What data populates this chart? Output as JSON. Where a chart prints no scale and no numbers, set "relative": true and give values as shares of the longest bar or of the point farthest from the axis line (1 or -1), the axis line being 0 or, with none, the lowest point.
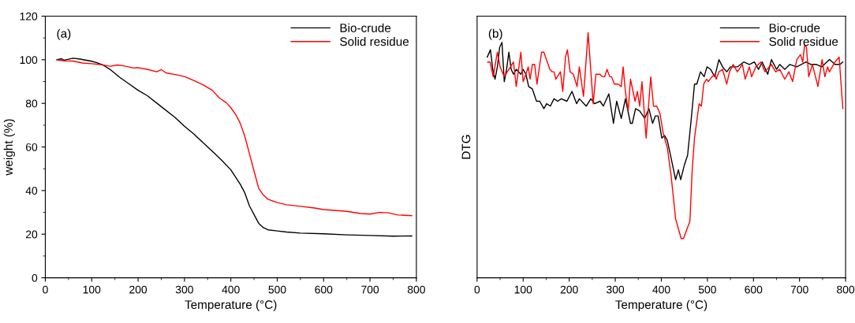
{
  "chart_data": [
    {
      "type": "line",
      "xlabel": "Temperature (°C)",
      "ylabel": "weight (%)",
      "annotations": [
        "(a)"
      ],
      "legend": "top right",
      "grid": false,
      "xlim": [
        0,
        800
      ],
      "xticks": [
        0,
        100,
        200,
        300,
        400,
        500,
        600,
        700,
        800
      ],
      "ylim": [
        0,
        120
      ],
      "yticks": [
        0,
        20,
        40,
        60,
        80,
        100,
        120
      ],
      "series": [
        {
          "name": "Bio-crude",
          "color": "#000000",
          "x": [
            25,
            35,
            40,
            60,
            75,
            100,
            110,
            125,
            140,
            160,
            180,
            200,
            220,
            250,
            280,
            300,
            320,
            340,
            360,
            380,
            400,
            420,
            430,
            440,
            450,
            460,
            470,
            480,
            500,
            520,
            550,
            600,
            650,
            700,
            750,
            790
          ],
          "values": [
            100,
            100.5,
            99.8,
            100.7,
            100.3,
            99.3,
            98.7,
            97.5,
            95.5,
            92,
            89,
            86,
            83.5,
            78.5,
            73.5,
            69.5,
            66,
            62,
            58,
            54,
            49.5,
            43,
            39,
            33,
            29,
            25,
            23,
            22,
            21.5,
            21,
            20.5,
            20.2,
            19.7,
            19.4,
            19.1,
            19.2
          ]
        },
        {
          "name": "Solid residue",
          "color": "#ff0000",
          "x": [
            25,
            40,
            60,
            80,
            100,
            120,
            140,
            155,
            170,
            190,
            200,
            220,
            240,
            250,
            260,
            280,
            300,
            320,
            340,
            360,
            375,
            390,
            400,
            410,
            420,
            430,
            440,
            450,
            460,
            470,
            480,
            500,
            520,
            550,
            580,
            600,
            650,
            680,
            700,
            720,
            740,
            760,
            790
          ],
          "values": [
            100,
            99.5,
            99.4,
            98.5,
            98.2,
            97.8,
            97,
            97.6,
            97.2,
            96.2,
            96.4,
            95.6,
            94.5,
            95.5,
            94,
            93.2,
            92.3,
            90.5,
            88.5,
            86,
            82.5,
            80.3,
            78,
            75,
            71,
            65,
            57,
            49,
            41,
            38,
            36,
            34.5,
            33.5,
            32.8,
            32,
            31.3,
            30.5,
            29.5,
            29.2,
            30,
            29.8,
            28.8,
            28.5
          ]
        }
      ]
    },
    {
      "type": "line",
      "xlabel": "Temperature (°C)",
      "ylabel": "DTG",
      "annotations": [
        "(b)"
      ],
      "legend": "top right",
      "grid": false,
      "relative": true,
      "tick_labels": "x",
      "xlim": [
        0,
        800
      ],
      "xticks": [
        0,
        100,
        200,
        300,
        400,
        500,
        600,
        700,
        800
      ],
      "series": [
        {
          "name": "Bio-crude",
          "color": "#000000",
          "x": [
            22,
            29,
            34,
            39,
            44,
            49,
            54,
            59,
            64,
            69,
            74,
            79,
            85,
            95,
            100,
            106,
            112,
            120,
            129,
            136,
            145,
            151,
            159,
            167,
            175,
            183,
            195,
            206,
            216,
            222,
            237,
            247,
            255,
            267,
            274,
            286,
            296,
            303,
            313,
            322,
            333,
            337,
            344,
            353,
            364,
            373,
            381,
            387,
            393,
            401,
            407,
            413,
            421,
            431,
            437,
            442,
            450,
            457,
            464,
            472,
            477,
            485,
            493,
            499,
            507,
            516,
            525,
            533,
            542,
            550,
            565,
            579,
            591,
            602,
            611,
            619,
            631,
            639,
            650,
            657,
            668,
            679,
            694,
            714,
            725,
            737,
            748,
            765,
            777,
            788,
            794
          ],
          "values": [
            0.9,
            0.93,
            0.85,
            0.81,
            0.86,
            0.94,
            0.96,
            0.8,
            0.85,
            0.92,
            0.85,
            0.83,
            0.85,
            0.83,
            0.85,
            0.83,
            0.78,
            0.77,
            0.72,
            0.72,
            0.69,
            0.71,
            0.7,
            0.73,
            0.72,
            0.73,
            0.72,
            0.76,
            0.71,
            0.73,
            0.7,
            0.73,
            0.71,
            0.72,
            0.7,
            0.75,
            0.63,
            0.72,
            0.65,
            0.73,
            0.63,
            0.63,
            0.69,
            0.68,
            0.65,
            0.69,
            0.63,
            0.66,
            0.66,
            0.57,
            0.58,
            0.56,
            0.49,
            0.4,
            0.44,
            0.4,
            0.46,
            0.5,
            0.63,
            0.79,
            0.79,
            0.84,
            0.82,
            0.86,
            0.85,
            0.82,
            0.89,
            0.86,
            0.84,
            0.86,
            0.86,
            0.88,
            0.87,
            0.88,
            0.85,
            0.88,
            0.83,
            0.89,
            0.85,
            0.87,
            0.85,
            0.87,
            0.86,
            0.88,
            0.87,
            0.87,
            0.86,
            0.89,
            0.87,
            0.87,
            0.88
          ]
        },
        {
          "name": "Solid residue",
          "color": "#ff0000",
          "x": [
            23,
            28,
            35,
            44,
            50,
            59,
            69,
            79,
            85,
            95,
            100,
            106,
            111,
            115,
            120,
            125,
            130,
            140,
            145,
            158,
            163,
            167,
            171,
            181,
            186,
            192,
            196,
            202,
            209,
            217,
            222,
            231,
            241,
            252,
            258,
            267,
            272,
            277,
            282,
            288,
            292,
            298,
            306,
            313,
            317,
            322,
            328,
            333,
            343,
            348,
            353,
            358,
            367,
            377,
            383,
            390,
            397,
            404,
            413,
            421,
            431,
            443,
            448,
            456,
            462,
            467,
            472,
            482,
            487,
            492,
            498,
            502,
            510,
            516,
            519,
            525,
            533,
            542,
            548,
            556,
            565,
            576,
            582,
            591,
            596,
            605,
            616,
            625,
            639,
            648,
            657,
            668,
            677,
            685,
            694,
            702,
            707,
            711,
            715,
            720,
            728,
            740,
            749,
            755,
            761,
            765,
            777,
            786,
            794
          ],
          "values": [
            0.88,
            0.88,
            0.82,
            0.92,
            0.86,
            0.82,
            0.85,
            0.88,
            0.78,
            0.92,
            0.8,
            0.83,
            0.86,
            0.81,
            0.87,
            0.87,
            0.79,
            0.92,
            0.92,
            0.85,
            0.84,
            0.84,
            0.81,
            0.84,
            0.76,
            0.9,
            0.93,
            0.84,
            0.83,
            0.78,
            0.86,
            0.74,
            1.0,
            0.71,
            0.83,
            0.83,
            0.82,
            0.82,
            0.85,
            0.82,
            0.82,
            0.79,
            0.79,
            0.78,
            0.86,
            0.76,
            0.68,
            0.81,
            0.72,
            0.76,
            0.7,
            0.8,
            0.57,
            0.82,
            0.7,
            0.7,
            0.67,
            0.59,
            0.53,
            0.42,
            0.24,
            0.16,
            0.16,
            0.2,
            0.23,
            0.44,
            0.57,
            0.71,
            0.7,
            0.79,
            0.81,
            0.8,
            0.82,
            0.83,
            0.81,
            0.84,
            0.85,
            0.79,
            0.84,
            0.87,
            0.84,
            0.87,
            0.81,
            0.86,
            0.82,
            0.86,
            0.88,
            0.84,
            0.87,
            0.84,
            0.85,
            0.81,
            0.84,
            0.8,
            0.89,
            0.91,
            0.88,
            0.95,
            0.94,
            0.82,
            0.87,
            0.78,
            0.89,
            0.82,
            0.86,
            0.84,
            0.88,
            0.9,
            0.69
          ]
        }
      ]
    }
  ]
}
